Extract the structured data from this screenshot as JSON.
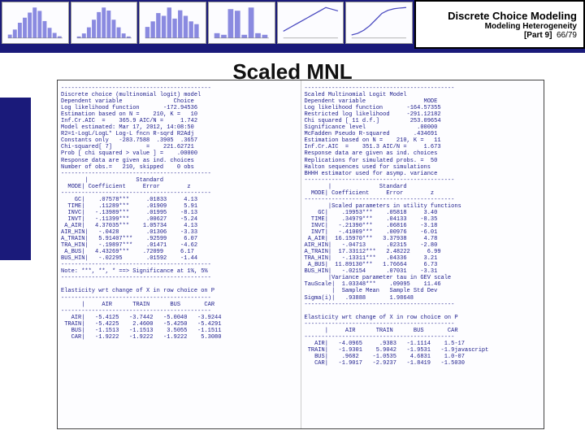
{
  "header": {
    "title": "Discrete Choice Modeling",
    "subtitle": "Modeling Heterogeneity",
    "part_label": "[Part 9]",
    "page": "66/79"
  },
  "main_title": "Scaled MNL",
  "thumbnails": {
    "bg": "#fcfcff",
    "bar_color": "#8a8ae0",
    "line_color": "#4a4ac0",
    "charts": [
      {
        "type": "bars",
        "values": [
          2,
          5,
          9,
          12,
          15,
          18,
          16,
          10,
          6,
          3,
          1
        ]
      },
      {
        "type": "bars",
        "values": [
          1,
          3,
          7,
          12,
          17,
          20,
          18,
          12,
          7,
          3,
          1
        ]
      },
      {
        "type": "bars",
        "values": [
          4,
          6,
          9,
          8,
          11,
          7,
          10,
          8,
          6,
          5
        ]
      },
      {
        "type": "bars",
        "values": [
          3,
          2,
          18,
          17,
          2,
          19,
          3,
          2
        ]
      },
      {
        "type": "line",
        "points": [
          4,
          6,
          8,
          10,
          12,
          14,
          16,
          18,
          17,
          16
        ]
      },
      {
        "type": "line",
        "points": [
          2,
          3,
          5,
          8,
          12,
          16,
          18,
          19,
          19.5,
          19.8
        ]
      }
    ]
  },
  "left_output": {
    "header": [
      "Discrete choice (multinomial logit) model",
      "Dependent variable               Choice",
      "Log likelihood function       -172.94536",
      "Estimation based on N =    210, K =   10",
      "Inf.Cr.AIC  =    365.9 AIC/N =     1.742",
      "Model estimated: Mar 17, 2012, 14:08:50",
      "R2=1-LogL/LogL* Log-L fncn R-sqrd R2Adj",
      "Constants only   -283.7588  .3905  .3657",
      "Chi-squared[ 7]          =    221.62721",
      "Prob [ chi squared > value ] =    .00000",
      "Response data are given as ind. choices",
      "Number of obs.=   210, skipped    0 obs"
    ],
    "coef_title": "       |              Standard",
    "coef_title2": "  MODE| Coefficient     Error        z",
    "coef_rows": [
      "    GC|    .07578***     .01833     4.13",
      "  TIME|    .11289***     .01909     5.91",
      "  INVC|   -.13989***     .01995    -8.13",
      "  INVT|   -.11399***     .00627    -5.24",
      " A_AIR|   4.37035***    1.05734     4.13",
      "AIR_HIN|   -.0428        .01306    -3.33",
      "A_TRAIN|   5.91407***    .92599     6.07",
      "TRA_HIN|   -.19897***    .01471    -4.62",
      " A_BUS|   4.43269***    .72099     6.17",
      "BUS_HIN|   -.02295       .01592    -1.44"
    ],
    "note": "Note: ***, **, * ==> Significance at 1%, 5%",
    "elas_title": "Elasticity wrt change of X in row choice on P",
    "elas_hdr": "      |     AIR      TRAIN      BUS       CAR",
    "elas_rows": [
      "   AIR|   -5.4125   -3.7442   -5.0040   -3.9244",
      " TRAIN|   -5.4225    2.4600   -5.4250   -5.4291",
      "   BUS|   -1.1513   -1.1513    3.5055   -1.1511",
      "   CAR|   -1.9222   -1.9222   -1.9222    5.3080"
    ]
  },
  "right_output": {
    "header": [
      "Scaled Multinomial Logit Model",
      "Dependent variable                 MODE",
      "Log likelihood function       -164.57355",
      "Restricted log likelihood     -291.12182",
      "Chi squared [ 11 d.f.]         253.09654",
      "Significance level               .00000",
      "McFadden Pseudo R-squared       .434691",
      "Estimation based on N =    210, K =   11",
      "Inf.Cr.AIC  =    351.3 AIC/N =     1.673",
      "Response data are given as ind. choices",
      "Replications for simulated probs. =  50",
      "Halton sequences used for simulations",
      "BHHH estimator used for asymp. variance"
    ],
    "coef_title": "       |              Standard",
    "coef_title2": "  MODE| Coefficient     Error        z",
    "scaled_hdr": "       |Scaled parameters in utility functions",
    "coef_rows": [
      "    GC|    .19953***    .05818     3.40",
      "  TIME|    .34979***    .04133    -8.35",
      "  INVC|   -.21390***    .06816    -3.18",
      "  INVT|   -.41009***    .00976    -6.01",
      " A_AIR|  16.15970***   3.37938     4.78",
      "AIR_HIN|   -.04713      .02315    -2.80",
      "A_TRAIN|  17.33112***   2.48222     6.99",
      "TRA_HIN|   -.13311***   .04336     3.21",
      " A_BUS|  11.89130***   1.76664     6.73",
      "BUS_HIN|   -.02154      .07031    -3.31"
    ],
    "var_hdr": "       |Variance parameter tau in GEV scale",
    "var_rows": [
      "TauScale|  1.03348***    .09095    11.46",
      "        |  Sample Mean   Sample Std Dev",
      "Sigma(i)|   .93888       1.98648"
    ],
    "elas_title": "Elasticity wrt change of X in row choice on P",
    "elas_hdr": "      |     AIR      TRAIN      BUS       CAR",
    "elas_rows": [
      "   AIR|   -4.0965     .9383   -1.1114    1.5-17",
      " TRAIN|   -1.9301    5.9042   -1.9531   -1.9javascript",
      "   BUS|    .9682    -1.0535    4.6831    1.0-07",
      "   CAR|   -1.9017   -2.9237   -1.8419   -1.5030"
    ]
  },
  "colors": {
    "navy": "#1a1a7a",
    "mono_text": "#1a1a8a",
    "thumb_bg": "#fcfcff"
  }
}
